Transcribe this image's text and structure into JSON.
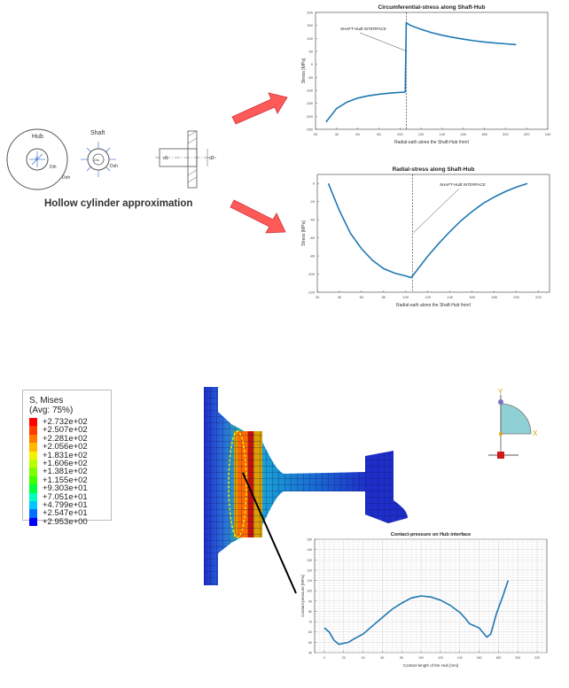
{
  "caption": "Hollow cylinder approximation",
  "sketch": {
    "hub_label": "Hub",
    "shaft_label": "Shaft",
    "hub_inner_d": "Dih",
    "hub_outer_d": "Doh",
    "shaft_outer_d": "Dsh",
    "shaft_inner_d": "Dis",
    "p_label": "p",
    "section_d1": "d1",
    "section_d2": "d2"
  },
  "chart_data": [
    {
      "type": "line",
      "title": "Circumferential-stress along Shaft-Hub",
      "xlabel": "Radial-path along the Shaft-Hub [mm]",
      "ylabel": "Stress [MPa]",
      "xlim": [
        20,
        240
      ],
      "ylim": [
        -250,
        200
      ],
      "xticks": [
        20,
        40,
        60,
        80,
        100,
        120,
        140,
        160,
        180,
        200,
        220,
        240
      ],
      "yticks": [
        200,
        150,
        100,
        50,
        0,
        -50,
        -100,
        -150,
        -200,
        -250
      ],
      "annotation": "SHAFT-HUB INTERFACE",
      "interface_x": 106,
      "series": [
        {
          "name": "shaft",
          "x": [
            30,
            40,
            50,
            60,
            70,
            80,
            90,
            100,
            105
          ],
          "y": [
            -222,
            -170,
            -145,
            -130,
            -121,
            -115,
            -111,
            -108,
            -107
          ]
        },
        {
          "name": "hub",
          "x": [
            105,
            106,
            110,
            120,
            130,
            140,
            150,
            160,
            170,
            180,
            190,
            200,
            210
          ],
          "y": [
            -107,
            160,
            150,
            135,
            122,
            112,
            104,
            97,
            91,
            86,
            82,
            79,
            76
          ]
        }
      ]
    },
    {
      "type": "line",
      "title": "Radial-stress along Shaft-Hub",
      "xlabel": "Radial-path along the Shaft-Hub [mm]",
      "ylabel": "Stress [MPa]",
      "xlim": [
        20,
        230
      ],
      "ylim": [
        -120,
        10
      ],
      "xticks": [
        20,
        40,
        60,
        80,
        100,
        120,
        140,
        160,
        180,
        200,
        220
      ],
      "yticks": [
        0,
        -20,
        -40,
        -60,
        -80,
        -100,
        -120
      ],
      "annotation": "SHAFT-HUB INTERFACE",
      "interface_x": 106,
      "series": [
        {
          "name": "shaft",
          "x": [
            30,
            40,
            50,
            60,
            70,
            80,
            90,
            100,
            105
          ],
          "y": [
            0,
            -30,
            -55,
            -72,
            -85,
            -94,
            -99,
            -102,
            -104
          ]
        },
        {
          "name": "hub",
          "x": [
            105,
            110,
            120,
            130,
            140,
            150,
            160,
            170,
            180,
            190,
            200,
            210
          ],
          "y": [
            -104,
            -96,
            -80,
            -66,
            -53,
            -41,
            -31,
            -22,
            -15,
            -9,
            -4,
            0
          ]
        }
      ]
    },
    {
      "type": "line",
      "title": "Contact-pressure on Hub interface",
      "xlabel": "Contact-length of the Hub [mm]",
      "ylabel": "Contact-pressure [MPa]",
      "xlim": [
        -10,
        230
      ],
      "ylim": [
        40,
        150
      ],
      "xticks": [
        0,
        20,
        40,
        60,
        80,
        100,
        120,
        140,
        160,
        180,
        200,
        220
      ],
      "yticks": [
        150,
        140,
        130,
        120,
        110,
        100,
        90,
        80,
        70,
        60,
        50,
        40
      ],
      "series": [
        {
          "name": "pressure",
          "x": [
            0,
            5,
            10,
            15,
            20,
            25,
            30,
            40,
            50,
            60,
            70,
            80,
            90,
            100,
            110,
            120,
            130,
            140,
            145,
            150,
            160,
            168,
            172,
            178,
            185,
            190
          ],
          "y": [
            64,
            60,
            52,
            48,
            49,
            50,
            53,
            58,
            66,
            74,
            82,
            88,
            93,
            95,
            94,
            91,
            86,
            79,
            74,
            68,
            64,
            55,
            58,
            78,
            96,
            110
          ]
        }
      ]
    }
  ],
  "legend": {
    "title": "S, Mises",
    "subtitle": "(Avg: 75%)",
    "entries": [
      {
        "label": "+2.732e+02",
        "color": "#ff0000"
      },
      {
        "label": "+2.507e+02",
        "color": "#ff3d00"
      },
      {
        "label": "+2.281e+02",
        "color": "#ff7a00"
      },
      {
        "label": "+2.056e+02",
        "color": "#ffb700"
      },
      {
        "label": "+1.831e+02",
        "color": "#f5f000"
      },
      {
        "label": "+1.606e+02",
        "color": "#b9ff00"
      },
      {
        "label": "+1.381e+02",
        "color": "#7cff00"
      },
      {
        "label": "+1.155e+02",
        "color": "#3fff00"
      },
      {
        "label": "+9.303e+01",
        "color": "#00ff3d"
      },
      {
        "label": "+7.051e+01",
        "color": "#00ffbf"
      },
      {
        "label": "+4.799e+01",
        "color": "#00c8ff"
      },
      {
        "label": "+2.547e+01",
        "color": "#0070ff"
      },
      {
        "label": "+2.953e+00",
        "color": "#0000ff"
      }
    ]
  },
  "triad": {
    "y_label": "Y",
    "x_label": "X"
  },
  "colors": {
    "line": "#1f77b4",
    "arrow": "#ff5a5a",
    "mesh_dark": "#1e2ec8",
    "mesh_mid": "#1c86d8",
    "mesh_light": "#2bd0c8",
    "contact_band": "#ff8a00"
  }
}
